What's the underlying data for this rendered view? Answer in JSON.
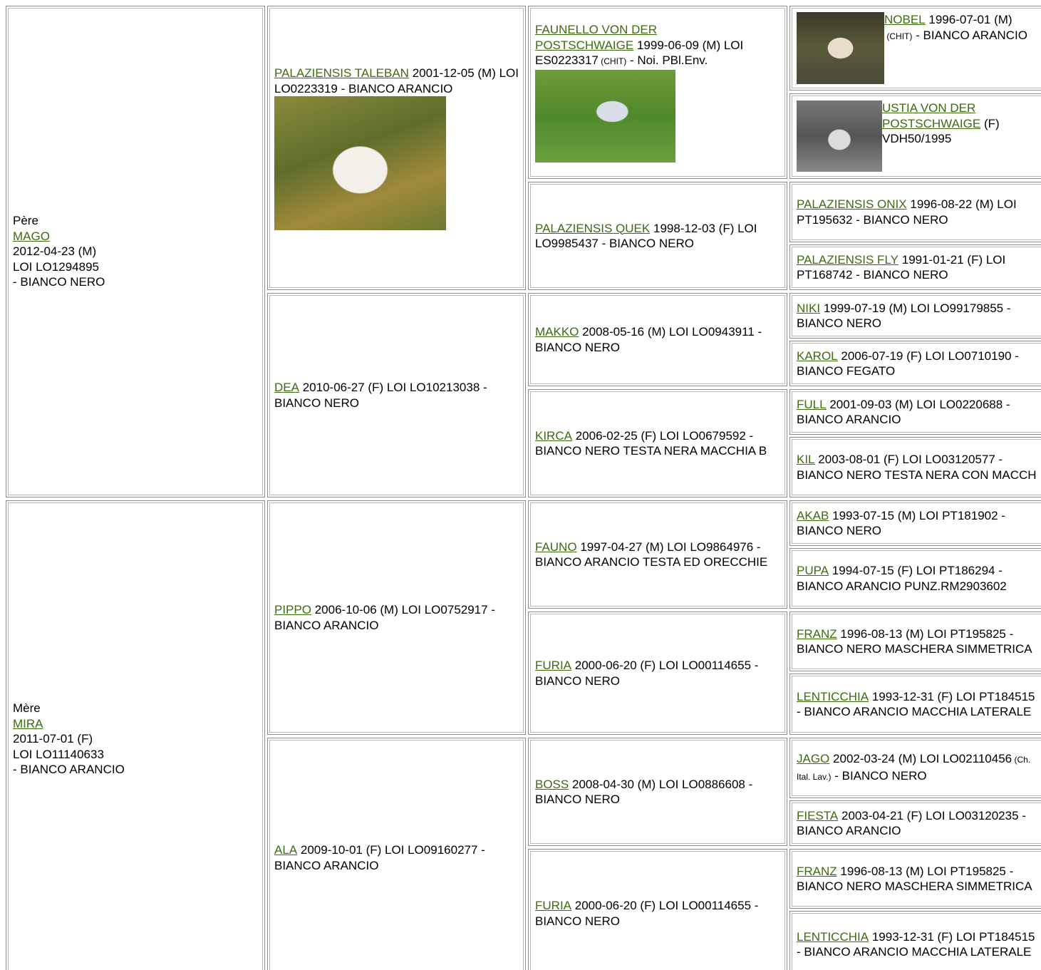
{
  "columns": [
    [
      {
        "label": "Père",
        "name": "MAGO",
        "lines": [
          "2012-04-23 (M)",
          "LOI LO1294895",
          "- BIANCO NERO"
        ]
      },
      {
        "label": "Mère",
        "name": "MIRA",
        "lines": [
          "2011-07-01 (F)",
          "LOI LO11140633",
          "- BIANCO ARANCIO"
        ]
      }
    ],
    [
      {
        "name": "PALAZIENSIS TALEBAN",
        "info": "2001-12-05 (M) LOI LO0223319 - BIANCO ARANCIO"
      },
      {
        "name": "DEA",
        "info": "2010-06-27 (F) LOI LO10213038 - BIANCO NERO"
      },
      {
        "name": "PIPPO",
        "info": "2006-10-06 (M) LOI LO0752917 - BIANCO ARANCIO"
      },
      {
        "name": "ALA",
        "info": "2009-10-01 (F) LOI LO09160277 - BIANCO ARANCIO"
      }
    ],
    [
      {
        "name": "FAUNELLO VON DER POSTSCHWAIGE",
        "info": "1999-06-09 (M) LOI ES0223317",
        "small": "(CHIT)",
        "info2": "- Noi. PBl.Env."
      },
      {
        "name": "PALAZIENSIS QUEK",
        "info": "1998-12-03 (F) LOI LO9985437 - BIANCO NERO"
      },
      {
        "name": "MAKKO",
        "info": "2008-05-16 (M) LOI LO0943911 - BIANCO NERO"
      },
      {
        "name": "KIRCA",
        "info": "2006-02-25 (F) LOI LO0679592 - BIANCO NERO TESTA NERA MACCHIA B"
      },
      {
        "name": "FAUNO",
        "info": "1997-04-27 (M) LOI LO9864976 - BIANCO ARANCIO TESTA ED ORECCHIE"
      },
      {
        "name": "FURIA",
        "info": "2000-06-20 (F) LOI LO00114655 - BIANCO NERO"
      },
      {
        "name": "BOSS",
        "info": "2008-04-30 (M) LOI LO0886608 - BIANCO NERO"
      },
      {
        "name": "FURIA",
        "info": "2000-06-20 (F) LOI LO00114655 - BIANCO NERO"
      }
    ],
    [
      {
        "name": "NOBEL",
        "info": "1996-07-01 (M)",
        "small": "(CHIT)",
        "info2": "- BIANCO ARANCIO"
      },
      {
        "name": "USTIA VON DER POSTSCHWAIGE",
        "info": "(F) VDH50/1995"
      },
      {
        "name": "PALAZIENSIS ONIX",
        "info": "1996-08-22 (M) LOI PT195632 - BIANCO NERO"
      },
      {
        "name": "PALAZIENSIS FLY",
        "info": "1991-01-21 (F) LOI PT168742 - BIANCO NERO"
      },
      {
        "name": "NIKI",
        "info": "1999-07-19 (M) LOI LO99179855 - BIANCO NERO"
      },
      {
        "name": "KAROL",
        "info": "2006-07-19 (F) LOI LO0710190 - BIANCO FEGATO"
      },
      {
        "name": "FULL",
        "info": "2001-09-03 (M) LOI LO0220688 - BIANCO ARANCIO"
      },
      {
        "name": "KIL",
        "info": "2003-08-01 (F) LOI LO03120577 - BIANCO NERO TESTA NERA CON MACCH"
      },
      {
        "name": "AKAB",
        "info": "1993-07-15 (M) LOI PT181902 - BIANCO NERO"
      },
      {
        "name": "PUPA",
        "info": "1994-07-15 (F) LOI PT186294 - BIANCO ARANCIO PUNZ.RM2903602"
      },
      {
        "name": "FRANZ",
        "info": "1996-08-13 (M) LOI PT195825 - BIANCO NERO MASCHERA SIMMETRICA"
      },
      {
        "name": "LENTICCHIA",
        "info": "1993-12-31 (F) LOI PT184515 - BIANCO ARANCIO MACCHIA LATERALE"
      },
      {
        "name": "JAGO",
        "info": "2002-03-24 (M) LOI LO02110456",
        "small": "(Ch. Ital. Lav.)",
        "info2": "- BIANCO NERO"
      },
      {
        "name": "FIESTA",
        "info": "2003-04-21 (F) LOI LO03120235 - BIANCO ARANCIO"
      },
      {
        "name": "FRANZ",
        "info": "1996-08-13 (M) LOI PT195825 - BIANCO NERO MASCHERA SIMMETRICA"
      },
      {
        "name": "LENTICCHIA",
        "info": "1993-12-31 (F) LOI PT184515 - BIANCO ARANCIO MACCHIA LATERALE"
      }
    ]
  ]
}
